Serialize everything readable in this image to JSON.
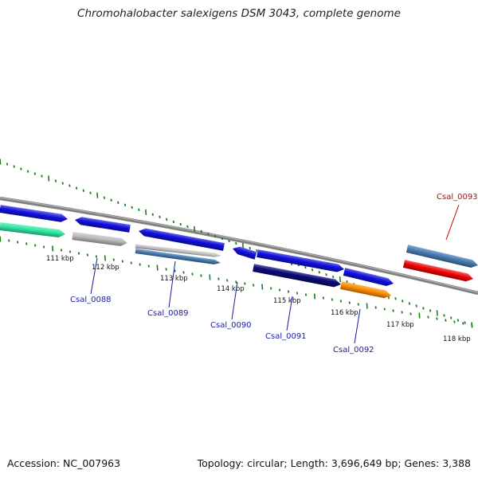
{
  "title": "Chromohalobacter salexigens DSM 3043, complete genome",
  "footer": {
    "accession": "Accession: NC_007963",
    "summary": "Topology: circular; Length: 3,696,649 bp; Genes: 3,388"
  },
  "colors": {
    "backbone": "#808080",
    "ticks": "#1a7f1a",
    "gene_label": "#1a1aa6",
    "highlight_label": "#cc0000"
  },
  "ticks": {
    "labels": [
      "111 kbp",
      "112 kbp",
      "113 kbp",
      "114 kbp",
      "115 kbp",
      "116 kbp",
      "117 kbp",
      "118 kbp"
    ]
  },
  "genes": [
    {
      "name": "",
      "color": "#1010dd",
      "strand": "+",
      "lane": "outer"
    },
    {
      "name": "",
      "color": "#2ee8a2",
      "strand": "+",
      "lane": "inner"
    },
    {
      "name": "Csal_0088",
      "color": "#1010dd",
      "strand": "-",
      "lane": "outer"
    },
    {
      "name": "",
      "color": "#bdbdbd",
      "strand": "+",
      "lane": "inner"
    },
    {
      "name": "Csal_0089",
      "color": "#1010dd",
      "strand": "-",
      "lane": "outer"
    },
    {
      "name": "",
      "color": "#bdbdbd",
      "strand": "+",
      "lane": "inner"
    },
    {
      "name": "",
      "color": "#4a7fb5",
      "strand": "+",
      "lane": "inner"
    },
    {
      "name": "Csal_0090",
      "color": "#1010dd",
      "strand": "-",
      "lane": "outer"
    },
    {
      "name": "Csal_0091",
      "color": "#1010dd",
      "strand": "+",
      "lane": "outer"
    },
    {
      "name": "",
      "color": "#0a0a7a",
      "strand": "+",
      "lane": "inner"
    },
    {
      "name": "Csal_0092",
      "color": "#1010dd",
      "strand": "+",
      "lane": "outer"
    },
    {
      "name": "",
      "color": "#ff8c00",
      "strand": "+",
      "lane": "inner"
    },
    {
      "name": "",
      "color": "#4a7fb5",
      "strand": "+",
      "lane": "outer"
    },
    {
      "name": "Csal_0093",
      "color": "#ee0000",
      "strand": "+",
      "lane": "inner"
    }
  ]
}
